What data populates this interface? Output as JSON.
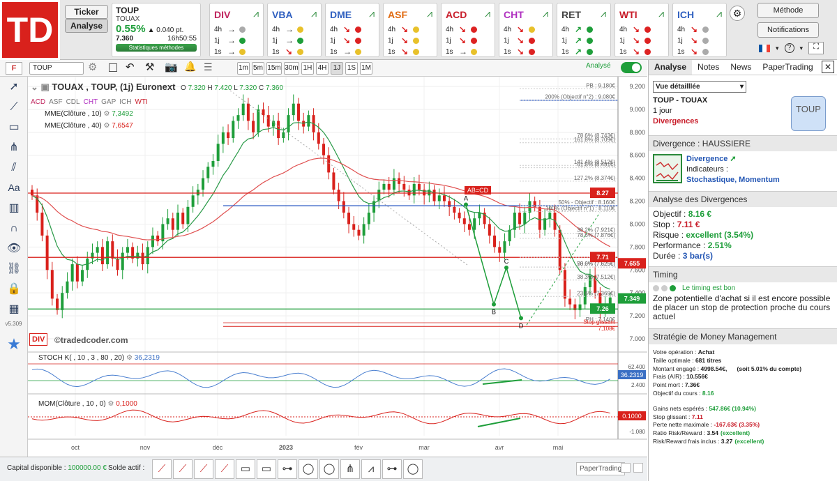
{
  "logo": "TD",
  "nav": {
    "ticker": "Ticker",
    "analyse": "Analyse"
  },
  "quote": {
    "symbol": "TOUP",
    "name": "TOUAX",
    "change_pct": "0.55%",
    "change_pts": "0.040 pt.",
    "price": "7.360",
    "time": "16h50:55",
    "stats": "Statistiques méthodes"
  },
  "indicators": [
    {
      "name": "DIV",
      "rows": [
        [
          "4h",
          "→",
          "#aaa"
        ],
        [
          "1j",
          "→",
          "#1e9e3a"
        ],
        [
          "1s",
          "→",
          "#e8c12a"
        ]
      ]
    },
    {
      "name": "VBA",
      "rows": [
        [
          "4h",
          "→",
          "#e8c12a"
        ],
        [
          "1j",
          "→",
          "#1e9e3a"
        ],
        [
          "1s",
          "↘",
          "#e8c12a"
        ]
      ]
    },
    {
      "name": "DME",
      "rows": [
        [
          "4h",
          "↘",
          "#d22"
        ],
        [
          "1j",
          "↘",
          "#d22"
        ],
        [
          "1s",
          "→",
          "#e8c12a"
        ]
      ]
    },
    {
      "name": "ASF",
      "rows": [
        [
          "4h",
          "↘",
          "#e8c12a"
        ],
        [
          "1j",
          "↘",
          "#e8c12a"
        ],
        [
          "1s",
          "↘",
          "#e8c12a"
        ]
      ]
    },
    {
      "name": "ACD",
      "rows": [
        [
          "4h",
          "↘",
          "#d22"
        ],
        [
          "1j",
          "↘",
          "#d22"
        ],
        [
          "1s",
          "→",
          "#e8c12a"
        ]
      ]
    },
    {
      "name": "CHT",
      "rows": [
        [
          "4h",
          "↘",
          "#e8c12a"
        ],
        [
          "1j",
          "↘",
          "#d22"
        ],
        [
          "1s",
          "↘",
          "#d22"
        ]
      ]
    },
    {
      "name": "RET",
      "rows": [
        [
          "4h",
          "↗",
          "#1e9e3a"
        ],
        [
          "1j",
          "↗",
          "#1e9e3a"
        ],
        [
          "1s",
          "↗",
          "#1e9e3a"
        ]
      ]
    },
    {
      "name": "WTI",
      "rows": [
        [
          "4h",
          "↘",
          "#d22"
        ],
        [
          "1j",
          "↘",
          "#d22"
        ],
        [
          "1s",
          "↘",
          "#d22"
        ]
      ]
    },
    {
      "name": "ICH",
      "rows": [
        [
          "4h",
          "↘",
          "#aaa"
        ],
        [
          "1j",
          "↘",
          "#aaa"
        ],
        [
          "1s",
          "↘",
          "#aaa"
        ]
      ]
    }
  ],
  "right_controls": {
    "methode": "Méthode",
    "notifications": "Notifications",
    "help": "?"
  },
  "toolbar": {
    "symbol": "TOUP",
    "timeframes": [
      "1m",
      "5m",
      "15m",
      "30m",
      "1H",
      "4H",
      "1J",
      "1S",
      "1M"
    ],
    "analyse_label": "Analysé"
  },
  "chart": {
    "title": "TOUAX , TOUP, (1j) Euronext",
    "ohlc": {
      "o": "7.320",
      "h": "7.420",
      "l": "7.320",
      "c": "7.360"
    },
    "tags": [
      "ACD",
      "ASF",
      "CDL",
      "CHT",
      "GAP",
      "ICH",
      "WTI"
    ],
    "mme10_label": "MME(Clôture , 10)",
    "mme10_val": "7,3492",
    "mme40_label": "MME(Clôture , 40)",
    "mme40_val": "7,6547",
    "watermark": "©tradedcoder.com",
    "div_badge": "DIV",
    "stoch_label": "STOCH K( , 10 , 3 , 80 , 20)",
    "stoch_val": "36,2319",
    "mom_label": "MOM(Clôture , 10 , 0)",
    "mom_val": "0,1000",
    "x_labels": [
      "oct",
      "nov",
      "déc",
      "2023",
      "fév",
      "mar",
      "avr",
      "mai"
    ],
    "y_labels": [
      "9.200",
      "9.000",
      "8.800",
      "8.600",
      "8.400",
      "8.200",
      "8.000",
      "7.800",
      "7.600",
      "7.400",
      "7.200",
      "7.000"
    ],
    "fib": [
      "PB : 9.180€",
      "200% (Objectif n°2) : 9.080€",
      "78.6% (8.743€)",
      "161.8% (8.709€)",
      "141.4% (8.512€)",
      "61.8% (8.491€)",
      "127.2% (8.374€)",
      "50% - Objectif : 8.160€",
      "100% (Objectif n°1) : 8.110€",
      "38.2% (7.921€)",
      "78.6% (7.876€)",
      "61.8%",
      "50.0% (7.625€)",
      "78.6% (7.625€)",
      "38.3% (7.512€)",
      "23.6% (7.369€)",
      "PH : 7.140€",
      "Stop glissant",
      "7,108€"
    ],
    "price_tags": [
      [
        "8.27",
        "#d9211c"
      ],
      [
        "7.71",
        "#d9211c"
      ],
      [
        "7.655",
        "#d9211c"
      ],
      [
        "7.349",
        "#1e9e3a"
      ],
      [
        "7.26",
        "#1e9e3a"
      ]
    ],
    "pattern_label": "AB=CD",
    "points": [
      "A",
      "B",
      "C",
      "D"
    ],
    "stoch_tag": "36.2319",
    "mom_tag": "0.1000",
    "stoch_levels": [
      "62.400",
      "2.400"
    ],
    "mom_level": "-1.080"
  },
  "panel": {
    "tabs": [
      "Analyse",
      "Notes",
      "News",
      "PaperTrading"
    ],
    "view": "Vue détailllée",
    "sym": "TOUP - TOUAX",
    "period": "1 jour",
    "type": "Divergences",
    "badge": "TOUP",
    "div_head": "Divergence : HAUSSIERE",
    "div_title": "Divergence",
    "indic_label": "Indicateurs :",
    "indic": "Stochastique, Momentum",
    "analyse_head": "Analyse des Divergences",
    "obj_l": "Objectif :",
    "obj": "8.16 €",
    "stop_l": "Stop :",
    "stop": "7.11 €",
    "risk_l": "Risque :",
    "risk": "excellent (3.54%)",
    "perf_l": "Performance :",
    "perf": "2.51%",
    "dur_l": "Durée :",
    "dur": "3 bar(s)",
    "timing_head": "Timing",
    "timing": "Le timing est bon",
    "zone": "Zone potentielle d'achat si il est encore possible de placer un stop de protection proche du cours actuel",
    "mm_head": "Stratégie de Money Management",
    "mm": [
      [
        "Votre opération : ",
        "Achat",
        ""
      ],
      [
        "Taille optimale : ",
        "681 titres",
        ""
      ],
      [
        "Montant engagé : ",
        "4998.54€,",
        "      (soit 5.01% du compte)"
      ],
      [
        "Frais (A/R) : ",
        "10.556€",
        ""
      ],
      [
        "Point mort : ",
        "7.36€",
        ""
      ],
      [
        "Objectif du cours : ",
        "8.16",
        ""
      ]
    ],
    "mm2": [
      [
        "Gains nets espérés : ",
        "547.86€ (10.94%)",
        "g"
      ],
      [
        "Stop glissant : ",
        "7.11",
        "rd"
      ],
      [
        "Perte nette maximale : ",
        "-167.63€ (3.35%)",
        "rd"
      ],
      [
        "Ratio Risk/Reward : ",
        "3.54",
        "g2"
      ],
      [
        "Risk/Reward frais inclus : ",
        "3.27",
        "g2"
      ]
    ],
    "excellent": "(excellent)"
  },
  "bottom": {
    "capital_l": "Capital disponible :",
    "capital": "100000.00 €",
    "solde": "Solde actif :",
    "paper": "PaperTrading"
  },
  "version": "v5.309"
}
